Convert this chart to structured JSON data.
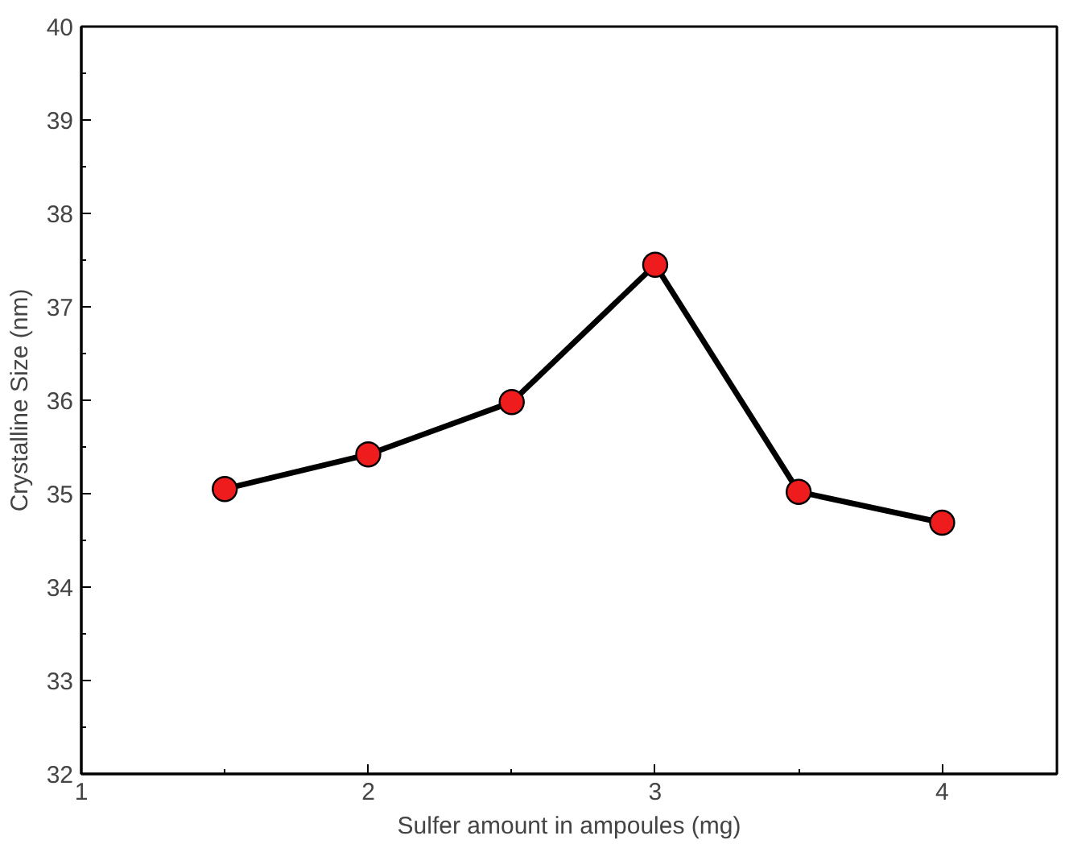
{
  "chart_data": {
    "type": "line",
    "xlabel": "Sulfer amount in ampoules (mg)",
    "ylabel": "Crystalline Size (nm)",
    "x": [
      1.5,
      2,
      2.5,
      3,
      3.5,
      4
    ],
    "series": [
      {
        "color": "#000000",
        "values": [
          35.05,
          35.42,
          35.98,
          37.45,
          35.02,
          34.69
        ]
      }
    ],
    "marker": "circle",
    "line_style": "solid",
    "xlim": [
      1,
      4.4
    ],
    "xticks": [
      1,
      2,
      3,
      4
    ],
    "ylim": [
      32,
      40
    ],
    "yticks": [
      32,
      33,
      34,
      35,
      36,
      37,
      38,
      39,
      40
    ],
    "grid": false
  }
}
